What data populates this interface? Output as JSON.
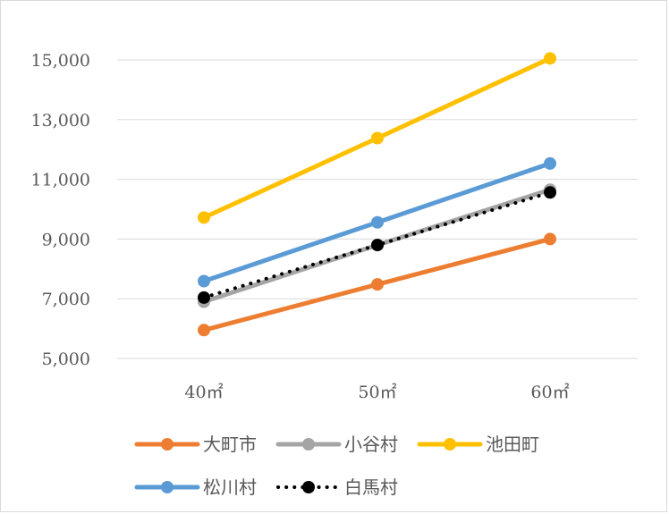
{
  "chart_data": {
    "type": "line",
    "title": "",
    "xlabel": "",
    "ylabel": "",
    "categories": [
      "40㎡",
      "50㎡",
      "60㎡"
    ],
    "ylim": [
      5000,
      15000
    ],
    "yticks": [
      "5,000",
      "7,000",
      "9,000",
      "11,000",
      "13,000",
      "15,000"
    ],
    "grid": true,
    "legend_position": "bottom",
    "series": [
      {
        "name": "大町市",
        "values": [
          5950,
          7480,
          9000
        ],
        "color": "#ED7D31",
        "style": "solid"
      },
      {
        "name": "小谷村",
        "values": [
          6900,
          8800,
          10650
        ],
        "color": "#A5A5A5",
        "style": "solid"
      },
      {
        "name": "池田町",
        "values": [
          9720,
          12380,
          15050
        ],
        "color": "#FFC000",
        "style": "solid"
      },
      {
        "name": "松川村",
        "values": [
          7590,
          9560,
          11530
        ],
        "color": "#5B9BD5",
        "style": "solid"
      },
      {
        "name": "白馬村",
        "values": [
          7040,
          8800,
          10560
        ],
        "color": "#000000",
        "style": "dotted"
      }
    ]
  }
}
